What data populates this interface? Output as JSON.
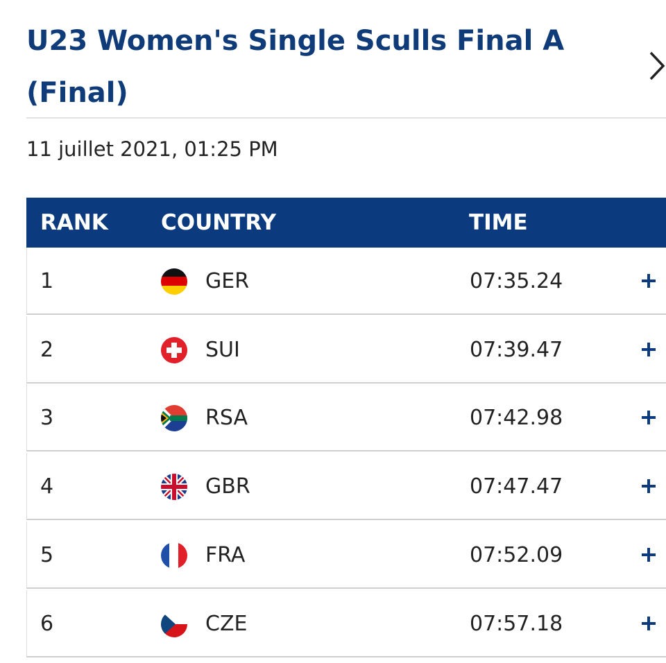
{
  "header": {
    "title": "U23 Women's Single Sculls Final A (Final)",
    "date": "11 juillet 2021, 01:25 PM"
  },
  "table": {
    "columns": [
      "RANK",
      "COUNTRY",
      "TIME"
    ],
    "rows": [
      [
        1,
        "GER",
        "07:35.24"
      ],
      [
        2,
        "SUI",
        "07:39.47"
      ],
      [
        3,
        "RSA",
        "07:42.98"
      ],
      [
        4,
        "GBR",
        "07:47.47"
      ],
      [
        5,
        "FRA",
        "07:52.09"
      ],
      [
        6,
        "CZE",
        "07:57.18"
      ]
    ]
  }
}
